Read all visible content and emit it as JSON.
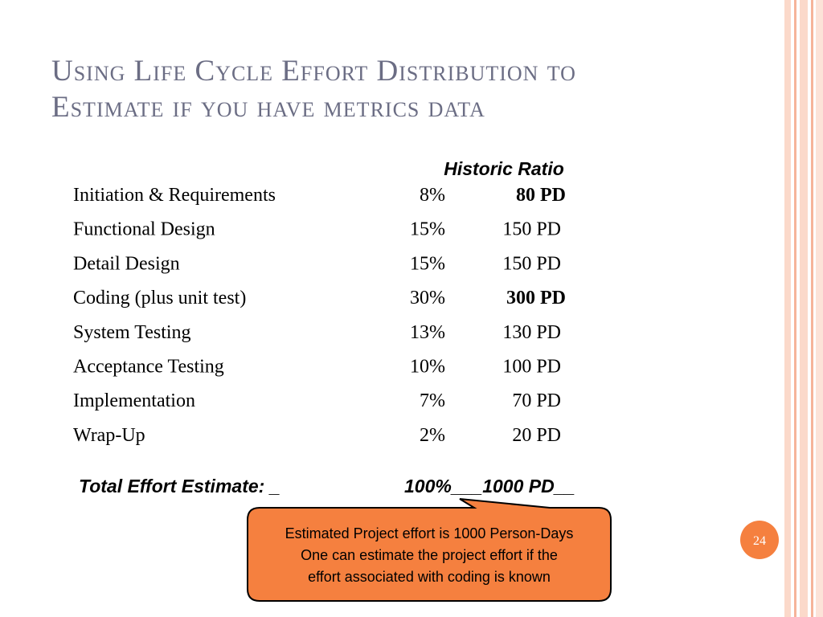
{
  "title": {
    "lines": [
      "Using Life Cycle Effort Distribution to",
      "Estimate if you have metrics data"
    ]
  },
  "table": {
    "header": "Historic Ratio",
    "rows": [
      {
        "phase": "Initiation & Requirements",
        "ratio": "8%",
        "effort": "80 PD",
        "bold": true
      },
      {
        "phase": "Functional Design",
        "ratio": "15%",
        "effort": "150 PD",
        "bold": false
      },
      {
        "phase": "Detail Design",
        "ratio": "15%",
        "effort": "150 PD",
        "bold": false
      },
      {
        "phase": "Coding (plus unit test)",
        "ratio": "30%",
        "effort": "300 PD",
        "bold": true
      },
      {
        "phase": "System Testing",
        "ratio": "13%",
        "effort": "130 PD",
        "bold": false
      },
      {
        "phase": "Acceptance Testing",
        "ratio": "10%",
        "effort": "100 PD",
        "bold": false
      },
      {
        "phase": "Implementation",
        "ratio": "7%",
        "effort": "70 PD",
        "bold": false
      },
      {
        "phase": "Wrap-Up",
        "ratio": "2%",
        "effort": "20 PD",
        "bold": false
      }
    ],
    "total": {
      "label": "Total Effort Estimate: _",
      "value": "100%___1000 PD__"
    }
  },
  "callout": {
    "lines": [
      "Estimated Project effort is 1000 Person-Days",
      "One can estimate the project effort if the",
      "effort associated with coding is known"
    ]
  },
  "page_number": "24"
}
